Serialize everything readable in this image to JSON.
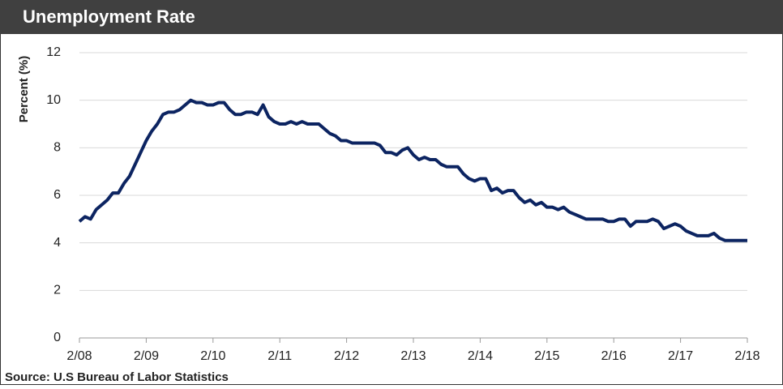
{
  "chart_data": {
    "type": "line",
    "title": "Unemployment Rate",
    "ylabel": "Percent  (%)",
    "source": "Source:  U.S Bureau of Labor Statistics",
    "categories": [
      "2/08",
      null,
      null,
      null,
      null,
      null,
      null,
      null,
      null,
      null,
      null,
      null,
      "2/09",
      null,
      null,
      null,
      null,
      null,
      null,
      null,
      null,
      null,
      null,
      null,
      "2/10",
      null,
      null,
      null,
      null,
      null,
      null,
      null,
      null,
      null,
      null,
      null,
      "2/11",
      null,
      null,
      null,
      null,
      null,
      null,
      null,
      null,
      null,
      null,
      null,
      "2/12",
      null,
      null,
      null,
      null,
      null,
      null,
      null,
      null,
      null,
      null,
      null,
      "2/13",
      null,
      null,
      null,
      null,
      null,
      null,
      null,
      null,
      null,
      null,
      null,
      "2/14",
      null,
      null,
      null,
      null,
      null,
      null,
      null,
      null,
      null,
      null,
      null,
      "2/15",
      null,
      null,
      null,
      null,
      null,
      null,
      null,
      null,
      null,
      null,
      null,
      "2/16",
      null,
      null,
      null,
      null,
      null,
      null,
      null,
      null,
      null,
      null,
      null,
      "2/17",
      null,
      null,
      null,
      null,
      null,
      null,
      null,
      null,
      null,
      null,
      null,
      "2/18"
    ],
    "values": [
      4.9,
      5.1,
      5.0,
      5.4,
      5.6,
      5.8,
      6.1,
      6.1,
      6.5,
      6.8,
      7.3,
      7.8,
      8.3,
      8.7,
      9.0,
      9.4,
      9.5,
      9.5,
      9.6,
      9.8,
      10.0,
      9.9,
      9.9,
      9.8,
      9.8,
      9.9,
      9.9,
      9.6,
      9.4,
      9.4,
      9.5,
      9.5,
      9.4,
      9.8,
      9.3,
      9.1,
      9.0,
      9.0,
      9.1,
      9.0,
      9.1,
      9.0,
      9.0,
      9.0,
      8.8,
      8.6,
      8.5,
      8.3,
      8.3,
      8.2,
      8.2,
      8.2,
      8.2,
      8.2,
      8.1,
      7.8,
      7.8,
      7.7,
      7.9,
      8.0,
      7.7,
      7.5,
      7.6,
      7.5,
      7.5,
      7.3,
      7.2,
      7.2,
      7.2,
      6.9,
      6.7,
      6.6,
      6.7,
      6.7,
      6.2,
      6.3,
      6.1,
      6.2,
      6.2,
      5.9,
      5.7,
      5.8,
      5.6,
      5.7,
      5.5,
      5.5,
      5.4,
      5.5,
      5.3,
      5.2,
      5.1,
      5.0,
      5.0,
      5.0,
      5.0,
      4.9,
      4.9,
      5.0,
      5.0,
      4.7,
      4.9,
      4.9,
      4.9,
      5.0,
      4.9,
      4.6,
      4.7,
      4.8,
      4.7,
      4.5,
      4.4,
      4.3,
      4.3,
      4.3,
      4.4,
      4.2,
      4.1,
      4.1,
      4.1,
      4.1,
      4.1
    ],
    "color": "#0c2461",
    "ylim": [
      0,
      12
    ],
    "yticks": [
      0,
      2,
      4,
      6,
      8,
      10,
      12
    ],
    "grid": true
  }
}
